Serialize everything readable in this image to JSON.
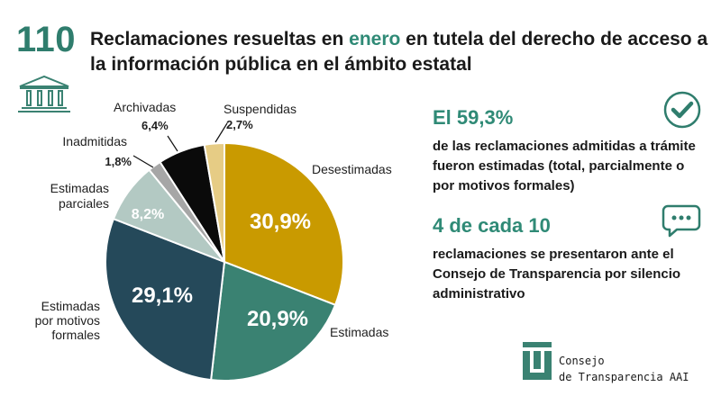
{
  "header": {
    "number": "110",
    "title_pre": "Reclamaciones resueltas en ",
    "title_highlight": "enero",
    "title_post": " en tutela del derecho de acceso a la información pública en el ámbito estatal"
  },
  "chart_data": {
    "type": "pie",
    "title": "",
    "slices": [
      {
        "label": "Desestimadas",
        "value": 30.9,
        "display": "30,9%",
        "color": "#c99a00"
      },
      {
        "label": "Estimadas",
        "value": 20.9,
        "display": "20,9%",
        "color": "#3a8272"
      },
      {
        "label": "Estimadas por motivos formales",
        "value": 29.1,
        "display": "29,1%",
        "color": "#25495a"
      },
      {
        "label": "Estimadas parciales",
        "value": 8.2,
        "display": "8,2%",
        "color": "#b3c9c3"
      },
      {
        "label": "Inadmitidas",
        "value": 1.8,
        "display": "1,8%",
        "color": "#a6a6a6"
      },
      {
        "label": "Archivadas",
        "value": 6.4,
        "display": "6,4%",
        "color": "#0a0a0a"
      },
      {
        "label": "Suspendidas",
        "value": 2.7,
        "display": "2,7%",
        "color": "#e6cc85"
      }
    ]
  },
  "labels": {
    "desestimadas": "Desestimadas",
    "estimadas": "Estimadas",
    "formales_1": "Estimadas",
    "formales_2": "por motivos",
    "formales_3": "formales",
    "parciales_1": "Estimadas",
    "parciales_2": "parciales",
    "inadmitidas": "Inadmitidas",
    "archivadas": "Archivadas",
    "suspendidas": "Suspendidas"
  },
  "stats": [
    {
      "headline": "El 59,3%",
      "text": "de las reclamaciones admitidas a trámite fueron estimadas (total, parcialmente o por motivos formales)",
      "icon": "check-circle-icon"
    },
    {
      "headline": "4 de cada 10",
      "text": "reclamaciones se presentaron ante el Consejo de Transparencia por silencio administrativo",
      "icon": "speech-bubble-icon"
    }
  ],
  "logo": {
    "line1": "Consejo",
    "line2": "de Transparencia AAI"
  }
}
